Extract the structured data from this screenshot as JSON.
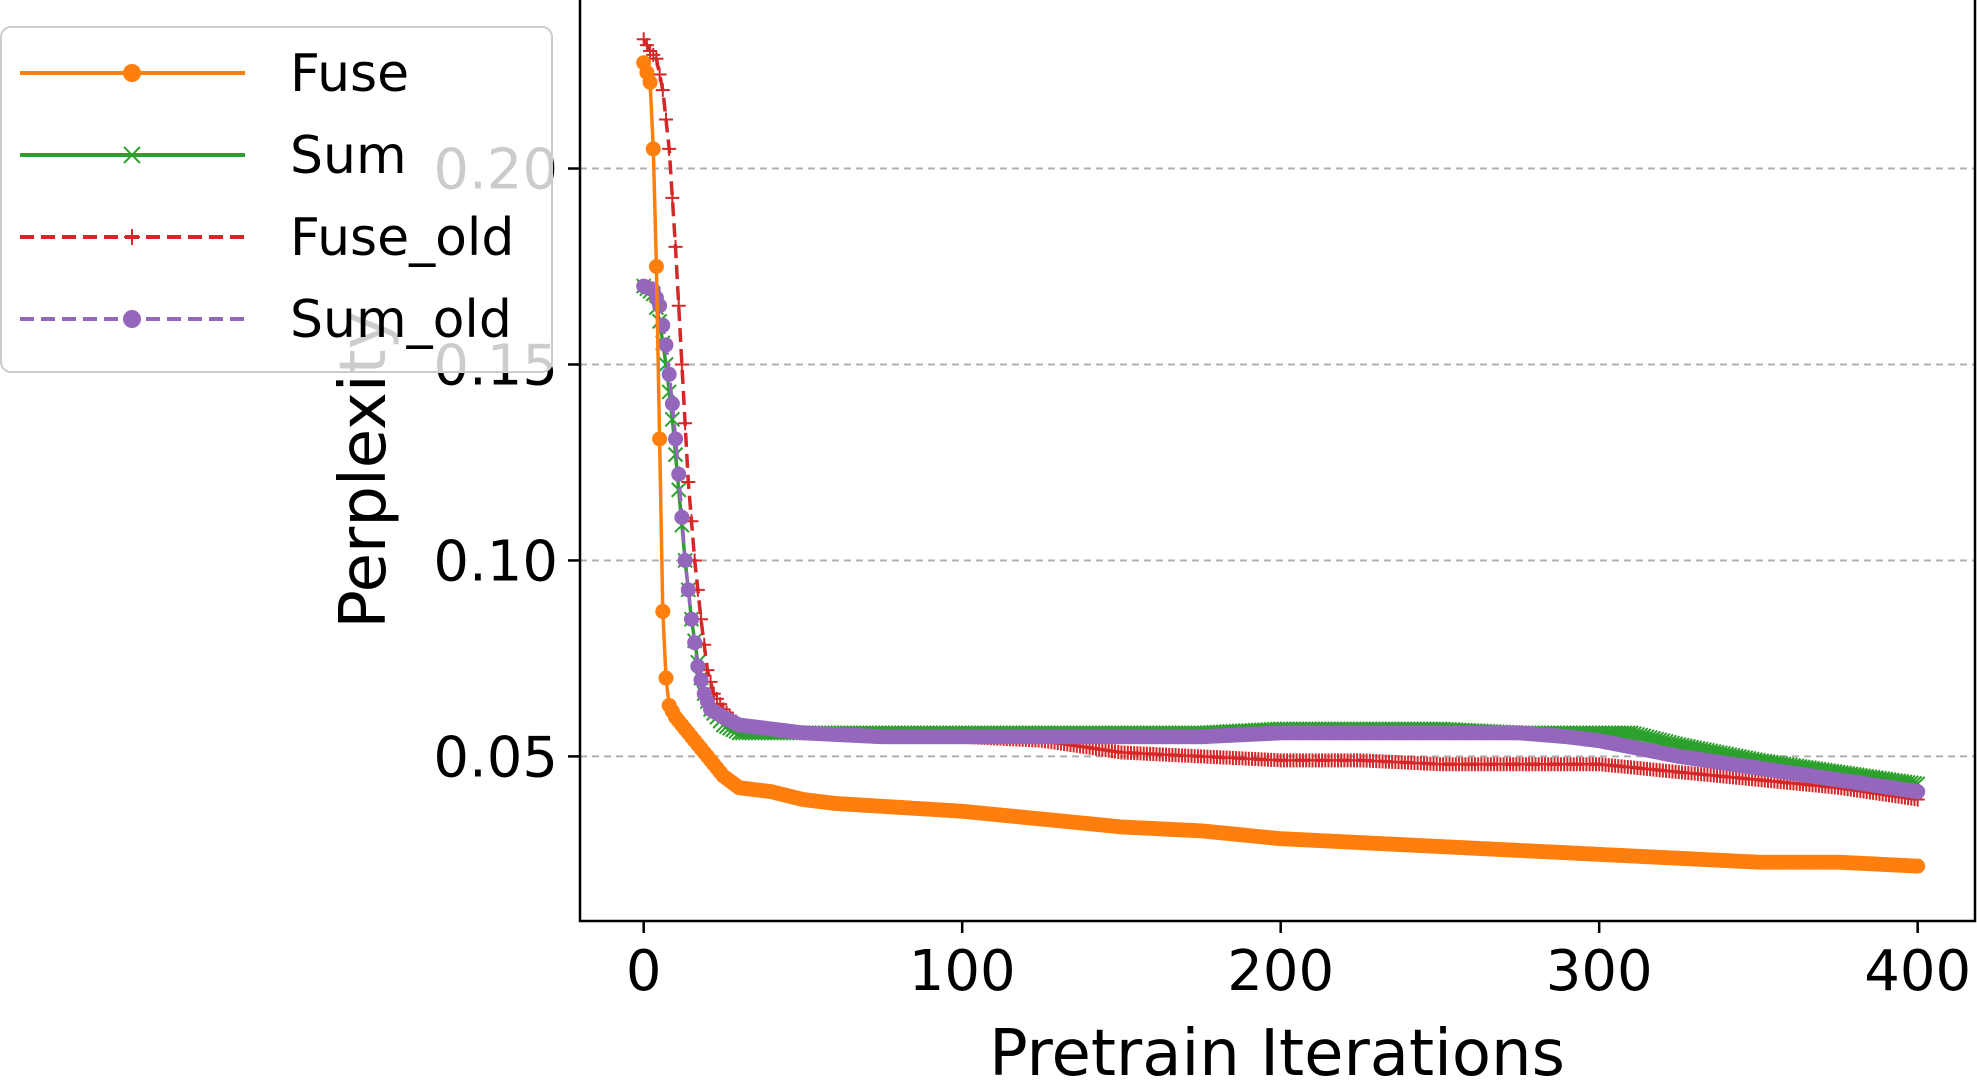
{
  "chart_data": {
    "type": "line",
    "title": "",
    "xlabel": "Pretrain Iterations",
    "ylabel": "Perplexity",
    "xlim": [
      -20,
      418
    ],
    "ylim": [
      0.008,
      0.243
    ],
    "x_ticks": [
      0,
      100,
      200,
      300,
      400
    ],
    "x_tick_labels": [
      "0",
      "100",
      "200",
      "300",
      "400"
    ],
    "y_ticks": [
      0.05,
      0.1,
      0.15,
      0.2
    ],
    "y_tick_labels": [
      "0.05",
      "0.10",
      "0.15",
      "0.20"
    ],
    "grid": "horizontal dashed",
    "legend_placement": "upper-left",
    "series": [
      {
        "name": "Fuse",
        "color": "#ff7f0e",
        "line": "solid",
        "marker": "dot",
        "x": [
          0,
          2,
          3,
          4,
          5,
          6,
          7,
          8,
          10,
          12,
          15,
          18,
          20,
          25,
          30,
          40,
          50,
          60,
          80,
          100,
          125,
          150,
          175,
          200,
          225,
          250,
          275,
          300,
          325,
          350,
          375,
          400
        ],
        "y": [
          0.227,
          0.222,
          0.205,
          0.175,
          0.131,
          0.087,
          0.07,
          0.063,
          0.06,
          0.058,
          0.055,
          0.052,
          0.05,
          0.045,
          0.042,
          0.041,
          0.039,
          0.038,
          0.037,
          0.036,
          0.034,
          0.032,
          0.031,
          0.029,
          0.028,
          0.027,
          0.026,
          0.025,
          0.024,
          0.023,
          0.023,
          0.022
        ]
      },
      {
        "name": "Sum",
        "color": "#2ca02c",
        "line": "solid",
        "marker": "x",
        "x": [
          0,
          3,
          5,
          7,
          9,
          11,
          13,
          15,
          17,
          19,
          21,
          25,
          30,
          40,
          50,
          75,
          100,
          125,
          150,
          175,
          200,
          225,
          250,
          275,
          300,
          310,
          325,
          350,
          375,
          400
        ],
        "y": [
          0.17,
          0.168,
          0.161,
          0.15,
          0.136,
          0.118,
          0.1,
          0.085,
          0.074,
          0.066,
          0.062,
          0.058,
          0.056,
          0.056,
          0.056,
          0.056,
          0.056,
          0.056,
          0.056,
          0.056,
          0.057,
          0.057,
          0.057,
          0.056,
          0.056,
          0.056,
          0.053,
          0.049,
          0.046,
          0.043
        ]
      },
      {
        "name": "Fuse_old",
        "color": "#d62728",
        "line": "dashed",
        "marker": "plus",
        "x": [
          0,
          2,
          4,
          6,
          8,
          10,
          12,
          14,
          16,
          18,
          20,
          22,
          25,
          30,
          40,
          50,
          75,
          100,
          125,
          150,
          175,
          200,
          225,
          250,
          275,
          300,
          325,
          350,
          375,
          400
        ],
        "y": [
          0.233,
          0.23,
          0.228,
          0.22,
          0.205,
          0.18,
          0.15,
          0.12,
          0.1,
          0.085,
          0.072,
          0.066,
          0.062,
          0.058,
          0.057,
          0.056,
          0.055,
          0.055,
          0.054,
          0.051,
          0.05,
          0.049,
          0.049,
          0.048,
          0.048,
          0.048,
          0.046,
          0.044,
          0.042,
          0.039
        ]
      },
      {
        "name": "Sum_old",
        "color": "#9467bd",
        "line": "dashed",
        "marker": "dot",
        "x": [
          0,
          3,
          5,
          7,
          9,
          11,
          13,
          15,
          17,
          19,
          21,
          25,
          30,
          40,
          50,
          75,
          100,
          125,
          150,
          175,
          200,
          225,
          250,
          275,
          290,
          300,
          325,
          350,
          375,
          400
        ],
        "y": [
          0.17,
          0.169,
          0.165,
          0.155,
          0.14,
          0.122,
          0.1,
          0.085,
          0.073,
          0.066,
          0.062,
          0.06,
          0.058,
          0.057,
          0.056,
          0.055,
          0.055,
          0.055,
          0.055,
          0.055,
          0.056,
          0.056,
          0.056,
          0.056,
          0.055,
          0.054,
          0.05,
          0.047,
          0.044,
          0.041
        ]
      }
    ]
  }
}
